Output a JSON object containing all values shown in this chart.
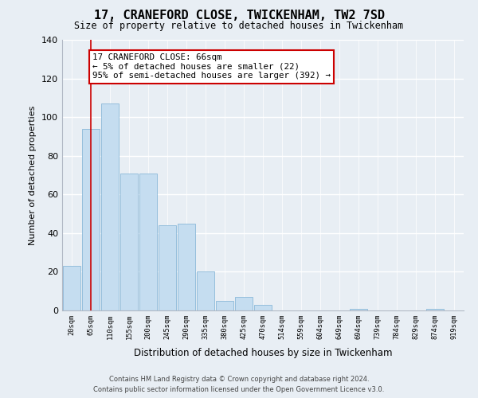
{
  "title": "17, CRANEFORD CLOSE, TWICKENHAM, TW2 7SD",
  "subtitle": "Size of property relative to detached houses in Twickenham",
  "xlabel": "Distribution of detached houses by size in Twickenham",
  "ylabel": "Number of detached properties",
  "bin_labels": [
    "20sqm",
    "65sqm",
    "110sqm",
    "155sqm",
    "200sqm",
    "245sqm",
    "290sqm",
    "335sqm",
    "380sqm",
    "425sqm",
    "470sqm",
    "514sqm",
    "559sqm",
    "604sqm",
    "649sqm",
    "694sqm",
    "739sqm",
    "784sqm",
    "829sqm",
    "874sqm",
    "919sqm"
  ],
  "bar_heights": [
    23,
    94,
    107,
    71,
    71,
    44,
    45,
    20,
    5,
    7,
    3,
    0,
    0,
    0,
    0,
    1,
    0,
    0,
    0,
    1,
    0
  ],
  "bar_color": "#c5ddf0",
  "bar_edge_color": "#8ab8d8",
  "ylim": [
    0,
    140
  ],
  "yticks": [
    0,
    20,
    40,
    60,
    80,
    100,
    120,
    140
  ],
  "vline_x": 1.0,
  "vline_color": "#cc0000",
  "annotation_line1": "17 CRANEFORD CLOSE: 66sqm",
  "annotation_line2": "← 5% of detached houses are smaller (22)",
  "annotation_line3": "95% of semi-detached houses are larger (392) →",
  "annotation_box_color": "#ffffff",
  "annotation_box_edge_color": "#cc0000",
  "footer_line1": "Contains HM Land Registry data © Crown copyright and database right 2024.",
  "footer_line2": "Contains public sector information licensed under the Open Government Licence v3.0.",
  "background_color": "#e8eef4"
}
